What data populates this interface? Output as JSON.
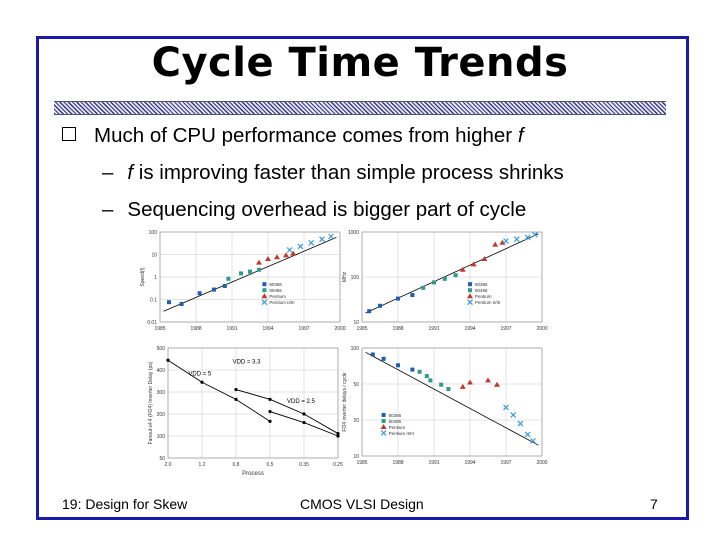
{
  "slide": {
    "title": "Cycle Time Trends",
    "bullets": [
      {
        "level": 1,
        "marker": "q",
        "text_before": "Much of CPU performance comes from higher ",
        "italic": "f",
        "text_after": ""
      },
      {
        "level": 2,
        "marker": "–",
        "text_before": "",
        "italic": "f",
        "text_after": " is improving faster than simple process shrinks"
      },
      {
        "level": 2,
        "marker": "–",
        "text_before": "Sequencing overhead is bigger part of cycle",
        "italic": "",
        "text_after": ""
      }
    ],
    "footer": {
      "left": "19: Design for Skew",
      "center": "CMOS VLSI Design",
      "page": "7"
    }
  },
  "colors": {
    "border": "#1a1aa8",
    "black": "#000000",
    "blue": "#1f5fb0",
    "teal": "#2e9a8a",
    "red": "#c0392b",
    "cyan": "#3b9bd6",
    "grid": "#c8c8c8"
  },
  "chart_data": [
    {
      "type": "scatter",
      "title": "",
      "ylabel": "Speed(f)",
      "xlabel": "",
      "x_ticks": [
        "1985",
        "1988",
        "1991",
        "1994",
        "1997",
        "2000"
      ],
      "y_ticks": [
        "100",
        "10",
        "1",
        "0.1",
        "0.01"
      ],
      "xlim": [
        1985,
        2000
      ],
      "ylim": [
        0.01,
        100
      ],
      "yscale": "log",
      "legend": [
        "80386",
        "80486",
        "Pentium",
        "Pentium II/III"
      ],
      "trend_line": true
    },
    {
      "type": "scatter",
      "title": "",
      "ylabel": "MHz",
      "xlabel": "",
      "x_ticks": [
        "1985",
        "1988",
        "1991",
        "1994",
        "1997",
        "2000"
      ],
      "y_ticks": [
        "1000",
        "100",
        "10"
      ],
      "xlim": [
        1985,
        2000
      ],
      "ylim": [
        10,
        1000
      ],
      "yscale": "log",
      "legend": [
        "80386",
        "80486",
        "Pentium",
        "Pentium II/III"
      ],
      "trend_line": true
    },
    {
      "type": "line",
      "title": "",
      "ylabel": "Fanout-of-4 (FO4) Inverter Delay (ps)",
      "xlabel": "Process",
      "x_ticks": [
        "2.0",
        "1.2",
        "0.8",
        "0.5",
        "0.35",
        "0.25"
      ],
      "y_ticks": [
        "500",
        "400",
        "300",
        "200",
        "100",
        "50"
      ],
      "series": [
        {
          "name": "VDD = 5",
          "x": [
            "2.0",
            "1.2",
            "0.8",
            "0.5"
          ],
          "values": [
            450,
            360,
            290,
            200
          ]
        },
        {
          "name": "VDD = 3.3",
          "x": [
            "0.8",
            "0.5",
            "0.35",
            "0.25"
          ],
          "values": [
            330,
            290,
            230,
            150
          ]
        },
        {
          "name": "VDD = 2.5",
          "x": [
            "0.5",
            "0.35",
            "0.25"
          ],
          "values": [
            240,
            195,
            140
          ]
        }
      ],
      "annotations": [
        "VDD = 3.3",
        "VDD = 5",
        "VDD = 2.5"
      ]
    },
    {
      "type": "scatter",
      "title": "",
      "ylabel": "FO4 inverter delays / cycle",
      "xlabel": "",
      "x_ticks": [
        "1985",
        "1988",
        "1991",
        "1994",
        "1997",
        "2000"
      ],
      "y_ticks": [
        "100",
        "50",
        "20",
        "10"
      ],
      "xlim": [
        1985,
        2000
      ],
      "ylim": [
        10,
        100
      ],
      "yscale": "log",
      "legend": [
        "80386",
        "80486",
        "Pentium",
        "Pentium II/III"
      ],
      "trend_line": true
    }
  ]
}
